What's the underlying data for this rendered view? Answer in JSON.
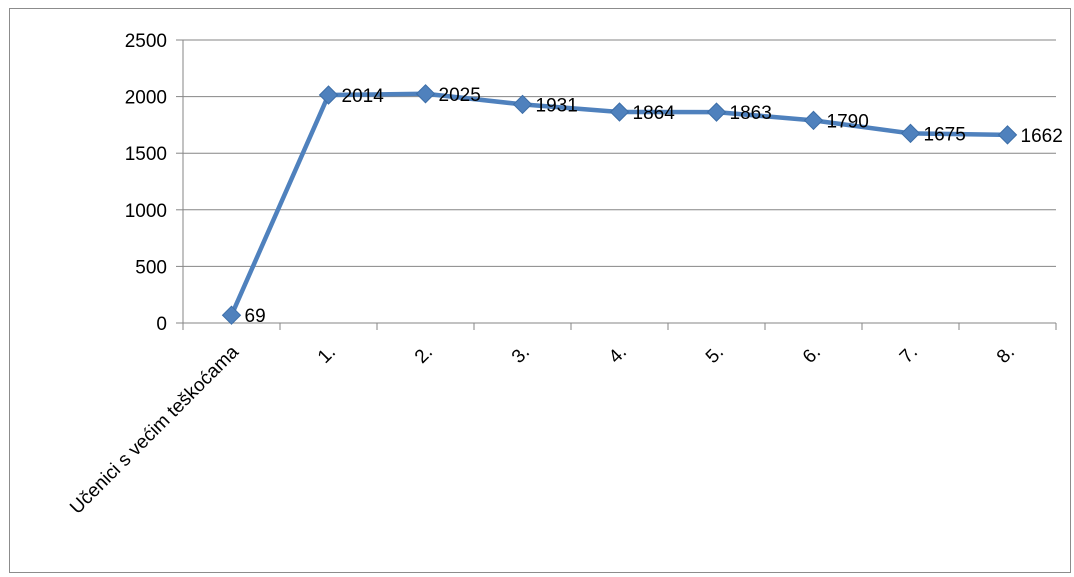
{
  "chart_data": {
    "type": "line",
    "title": "",
    "xlabel": "",
    "ylabel": "",
    "categories": [
      "Učenici s većim teškoćama",
      "1.",
      "2.",
      "3.",
      "4.",
      "5.",
      "6.",
      "7.",
      "8."
    ],
    "series": [
      {
        "values": [
          69,
          2014,
          2025,
          1931,
          1864,
          1863,
          1790,
          1675,
          1662
        ]
      }
    ],
    "y_ticks": [
      0,
      500,
      1000,
      1500,
      2000,
      2500
    ],
    "ylim": [
      0,
      2500
    ],
    "grid": "horizontal",
    "legend": "none",
    "data_labels": true,
    "colors": {
      "line": "#4f81bd",
      "marker": "#4f81bd",
      "grid": "#868686",
      "axis": "#868686"
    }
  }
}
